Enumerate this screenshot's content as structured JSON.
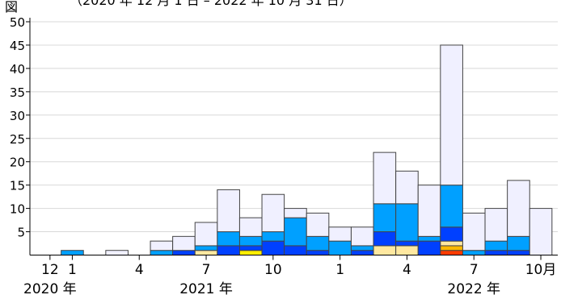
{
  "header": {
    "figure_label": "図",
    "period": "（2020 年 12 月 1 日 – 2022 年 10 月 31 日）"
  },
  "x_ticks": [
    {
      "i": 0,
      "label": "12"
    },
    {
      "i": 1,
      "label": "1"
    },
    {
      "i": 4,
      "label": "4"
    },
    {
      "i": 7,
      "label": "7"
    },
    {
      "i": 10,
      "label": "10"
    },
    {
      "i": 13,
      "label": "1"
    },
    {
      "i": 16,
      "label": "4"
    },
    {
      "i": 19,
      "label": "7"
    },
    {
      "i": 22,
      "label": "10月"
    }
  ],
  "year_labels": [
    {
      "i": 0,
      "label": "2020 年"
    },
    {
      "i": 7,
      "label": "2021 年"
    },
    {
      "i": 19,
      "label": "2022 年"
    }
  ],
  "chart_data": {
    "type": "bar",
    "stacked": true,
    "categories": [
      "2020-12",
      "2021-01",
      "2021-02",
      "2021-03",
      "2021-04",
      "2021-05",
      "2021-06",
      "2021-07",
      "2021-08",
      "2021-09",
      "2021-10",
      "2021-11",
      "2021-12",
      "2022-01",
      "2022-02",
      "2022-03",
      "2022-04",
      "2022-05",
      "2022-06",
      "2022-07",
      "2022-08",
      "2022-09",
      "2022-10"
    ],
    "ylim": [
      0,
      50
    ],
    "yticks": [
      5,
      10,
      15,
      20,
      25,
      30,
      35,
      40,
      45,
      50
    ],
    "series": [
      {
        "color": "#ff3b00",
        "values": [
          0,
          0,
          0,
          0,
          0,
          0,
          0,
          0,
          0,
          0,
          0,
          0,
          0,
          0,
          0,
          0,
          0,
          0,
          1,
          0,
          0,
          0,
          0
        ]
      },
      {
        "color": "#ffb800",
        "values": [
          0,
          0,
          0,
          0,
          0,
          0,
          0,
          0,
          0,
          0,
          0,
          0,
          0,
          0,
          0,
          0,
          0,
          0,
          1,
          0,
          0,
          0,
          0
        ]
      },
      {
        "color": "#ffee00",
        "values": [
          0,
          0,
          0,
          0,
          0,
          0,
          0,
          0,
          0,
          1,
          0,
          0,
          0,
          0,
          0,
          0,
          0,
          0,
          0,
          0,
          0,
          0,
          0
        ]
      },
      {
        "color": "#ffe8a0",
        "values": [
          0,
          0,
          0,
          0,
          0,
          0,
          0,
          1,
          0,
          0,
          0,
          0,
          0,
          0,
          0,
          2,
          2,
          0,
          1,
          0,
          0,
          0,
          0
        ]
      },
      {
        "color": "#0040ff",
        "values": [
          0,
          0,
          0,
          0,
          0,
          0,
          1,
          0,
          2,
          1,
          3,
          2,
          1,
          0,
          1,
          3,
          1,
          3,
          3,
          0,
          1,
          1,
          0
        ]
      },
      {
        "color": "#00a0ff",
        "values": [
          0,
          1,
          0,
          0,
          0,
          1,
          0,
          1,
          3,
          2,
          2,
          6,
          3,
          3,
          1,
          6,
          8,
          1,
          9,
          1,
          2,
          3,
          0
        ]
      },
      {
        "color": "#f0f0ff",
        "values": [
          0,
          0,
          0,
          1,
          0,
          2,
          3,
          5,
          9,
          4,
          8,
          2,
          5,
          3,
          4,
          11,
          7,
          11,
          30,
          8,
          7,
          12,
          10
        ]
      }
    ]
  }
}
